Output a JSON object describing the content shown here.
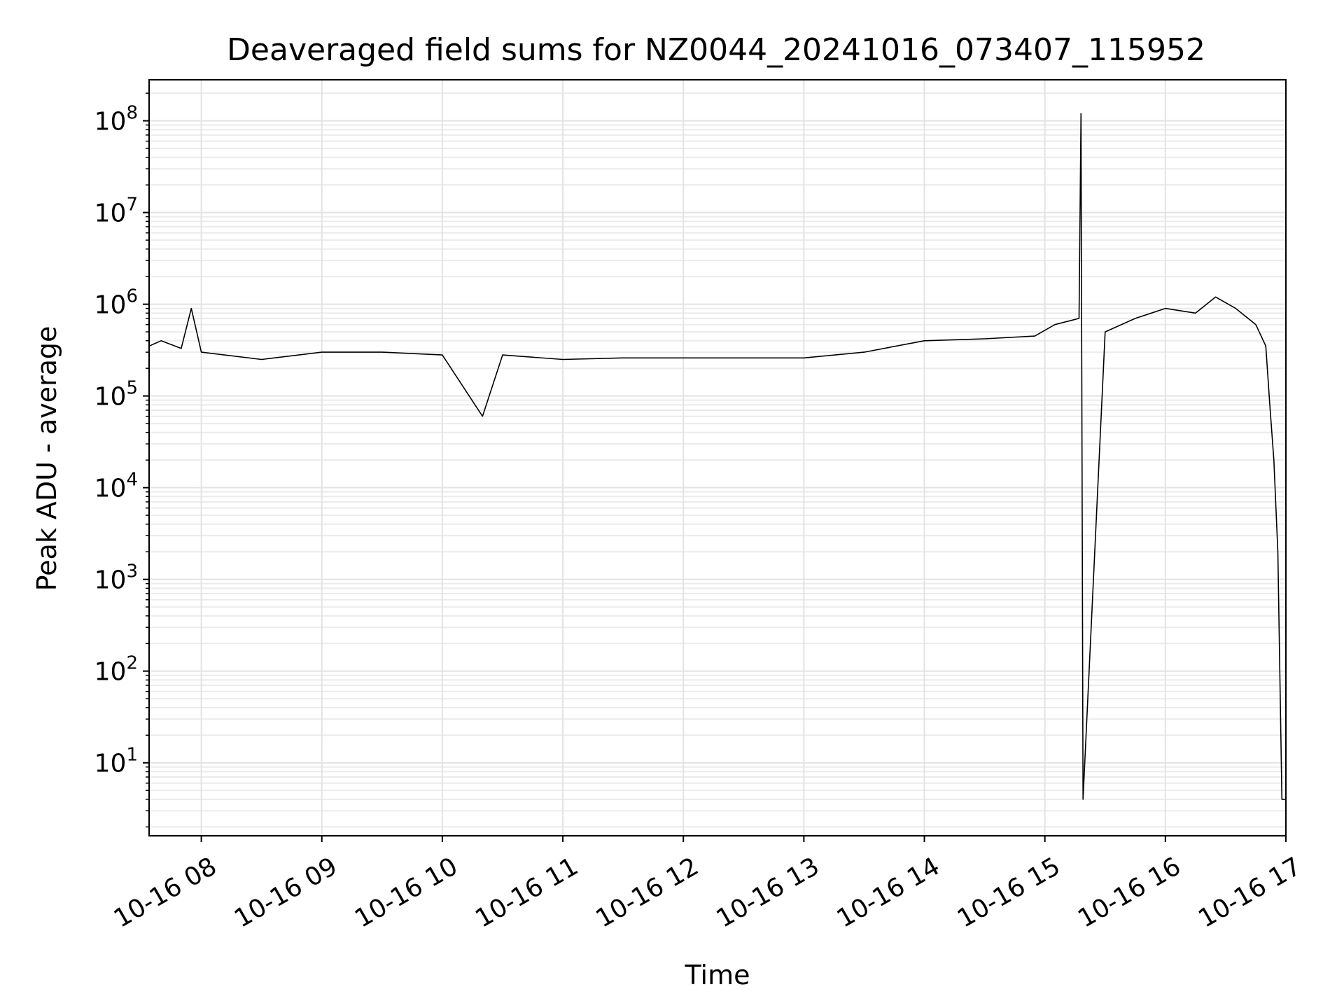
{
  "chart_data": {
    "type": "line",
    "title": "Deaveraged field sums for NZ0044_20241016_073407_115952",
    "xlabel": "Time",
    "ylabel": "Peak ADU - average",
    "yscale": "log",
    "ylim": [
      1.6,
      280000000
    ],
    "xlim": [
      "2024-10-16 07:34",
      "2024-10-16 17:00"
    ],
    "grid": true,
    "line_color": "#000000",
    "x_ticks": [
      "10-16 08",
      "10-16 09",
      "10-16 10",
      "10-16 11",
      "10-16 12",
      "10-16 13",
      "10-16 14",
      "10-16 15",
      "10-16 16",
      "10-16 17"
    ],
    "y_ticks": [
      {
        "value": 10,
        "base": "10",
        "exp": "1"
      },
      {
        "value": 100,
        "base": "10",
        "exp": "2"
      },
      {
        "value": 1000,
        "base": "10",
        "exp": "3"
      },
      {
        "value": 10000,
        "base": "10",
        "exp": "4"
      },
      {
        "value": 100000,
        "base": "10",
        "exp": "5"
      },
      {
        "value": 1000000,
        "base": "10",
        "exp": "6"
      },
      {
        "value": 10000000,
        "base": "10",
        "exp": "7"
      },
      {
        "value": 100000000,
        "base": "10",
        "exp": "8"
      }
    ],
    "series": [
      {
        "x": [
          "2024-10-16 07:34",
          "2024-10-16 07:40",
          "2024-10-16 07:50",
          "2024-10-16 07:55",
          "2024-10-16 08:00",
          "2024-10-16 08:30",
          "2024-10-16 09:00",
          "2024-10-16 09:30",
          "2024-10-16 10:00",
          "2024-10-16 10:20",
          "2024-10-16 10:30",
          "2024-10-16 11:00",
          "2024-10-16 11:30",
          "2024-10-16 12:00",
          "2024-10-16 12:30",
          "2024-10-16 13:00",
          "2024-10-16 13:30",
          "2024-10-16 14:00",
          "2024-10-16 14:30",
          "2024-10-16 14:55",
          "2024-10-16 15:05",
          "2024-10-16 15:17",
          "2024-10-16 15:18",
          "2024-10-16 15:19",
          "2024-10-16 15:30",
          "2024-10-16 15:45",
          "2024-10-16 16:00",
          "2024-10-16 16:15",
          "2024-10-16 16:25",
          "2024-10-16 16:35",
          "2024-10-16 16:45",
          "2024-10-16 16:50",
          "2024-10-16 16:52",
          "2024-10-16 16:54",
          "2024-10-16 16:56",
          "2024-10-16 16:58",
          "2024-10-16 16:59",
          "2024-10-16 17:00"
        ],
        "y": [
          350000,
          400000,
          330000,
          900000,
          300000,
          250000,
          300000,
          300000,
          280000,
          60000,
          280000,
          250000,
          260000,
          260000,
          260000,
          260000,
          300000,
          400000,
          420000,
          450000,
          600000,
          700000,
          120000000,
          4,
          500000,
          700000,
          900000,
          800000,
          1200000,
          900000,
          600000,
          350000,
          80000,
          20000,
          2000,
          4,
          4,
          4
        ]
      }
    ]
  }
}
